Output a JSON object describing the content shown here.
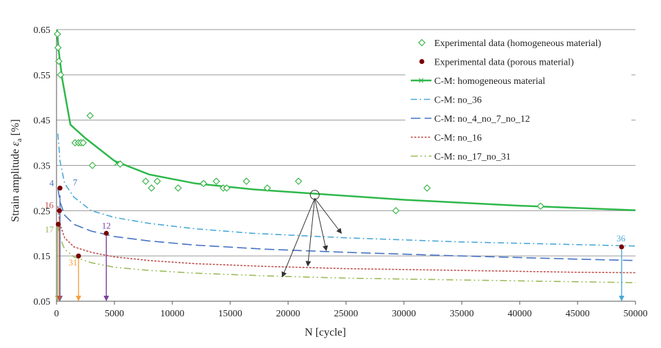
{
  "chart_data": {
    "type": "scatter",
    "xlabel": "N [cycle]",
    "ylabel_main": "Strain amplitude ",
    "ylabel_symbol": "ε",
    "ylabel_sub": "a",
    "ylabel_unit": " [%]",
    "xlim": [
      0,
      50000
    ],
    "ylim": [
      0.05,
      0.65
    ],
    "x_ticks": [
      0,
      5000,
      10000,
      15000,
      20000,
      25000,
      30000,
      35000,
      40000,
      45000,
      50000
    ],
    "x_tick_labels": [
      "0",
      "5000",
      "10000",
      "15000",
      "20000",
      "25000",
      "30000",
      "35000",
      "40000",
      "45000",
      "50000"
    ],
    "y_ticks": [
      0.05,
      0.15,
      0.25,
      0.35,
      0.45,
      0.55,
      0.65
    ],
    "y_tick_labels": [
      "0.05",
      "0.15",
      "0.25",
      "0.35",
      "0.45",
      "0.55",
      "0.65"
    ],
    "grid": "horizontal",
    "legend_position": "top-right",
    "legend": [
      {
        "key": "homo",
        "label": "Experimental data (homogeneous material)",
        "color": "#3cb44b",
        "style": "diamond"
      },
      {
        "key": "porous",
        "label": "Experimental data (porous material)",
        "color": "#7b0000",
        "style": "dot"
      },
      {
        "key": "cm_homo",
        "label": "C-M: homogeneous material",
        "color": "#2db84a",
        "style": "solid"
      },
      {
        "key": "no36",
        "label": "C-M: no_36",
        "color": "#4aa8d8",
        "style": "dashdot"
      },
      {
        "key": "no4",
        "label": "C-M: no_4_no_7_no_12",
        "color": "#4472c4",
        "style": "longdash"
      },
      {
        "key": "no16",
        "label": "C-M: no_16",
        "color": "#c0504d",
        "style": "dotted"
      },
      {
        "key": "no17",
        "label": "C-M: no_17_no_31",
        "color": "#9bbb59",
        "style": "dashdotdot"
      }
    ],
    "series": [
      {
        "name": "Experimental data (homogeneous material)",
        "points": [
          [
            80,
            0.64
          ],
          [
            130,
            0.61
          ],
          [
            200,
            0.58
          ],
          [
            350,
            0.55
          ],
          [
            1600,
            0.4
          ],
          [
            1900,
            0.4
          ],
          [
            2100,
            0.4
          ],
          [
            2300,
            0.4
          ],
          [
            2900,
            0.46
          ],
          [
            3100,
            0.35
          ],
          [
            5500,
            0.353
          ],
          [
            7700,
            0.315
          ],
          [
            8200,
            0.3
          ],
          [
            8700,
            0.315
          ],
          [
            10500,
            0.3
          ],
          [
            12700,
            0.31
          ],
          [
            13800,
            0.315
          ],
          [
            14400,
            0.3
          ],
          [
            14700,
            0.3
          ],
          [
            16400,
            0.315
          ],
          [
            18200,
            0.3
          ],
          [
            20900,
            0.315
          ],
          [
            29300,
            0.25
          ],
          [
            32000,
            0.3
          ],
          [
            41800,
            0.26
          ]
        ]
      },
      {
        "name": "Experimental data (porous material)",
        "points": [
          [
            300,
            0.3
          ],
          [
            250,
            0.25
          ],
          [
            150,
            0.22
          ],
          [
            1900,
            0.15
          ],
          [
            4300,
            0.2
          ],
          [
            48800,
            0.17
          ]
        ]
      },
      {
        "name": "C-M: homogeneous material",
        "curve": [
          [
            40,
            0.65
          ],
          [
            200,
            0.6
          ],
          [
            500,
            0.54
          ],
          [
            1200,
            0.44
          ],
          [
            2500,
            0.41
          ],
          [
            5000,
            0.36
          ],
          [
            8000,
            0.33
          ],
          [
            12000,
            0.31
          ],
          [
            17000,
            0.297
          ],
          [
            22000,
            0.288
          ],
          [
            30000,
            0.274
          ],
          [
            40000,
            0.261
          ],
          [
            50000,
            0.251
          ]
        ]
      },
      {
        "name": "C-M: no_36",
        "curve": [
          [
            120,
            0.42
          ],
          [
            300,
            0.36
          ],
          [
            700,
            0.31
          ],
          [
            1500,
            0.28
          ],
          [
            3000,
            0.25
          ],
          [
            5000,
            0.235
          ],
          [
            8000,
            0.222
          ],
          [
            12000,
            0.21
          ],
          [
            17000,
            0.2
          ],
          [
            25000,
            0.19
          ],
          [
            35000,
            0.181
          ],
          [
            45000,
            0.175
          ],
          [
            50000,
            0.172
          ]
        ]
      },
      {
        "name": "C-M: no_4_no_7_no_12",
        "curve": [
          [
            120,
            0.3
          ],
          [
            300,
            0.27
          ],
          [
            700,
            0.24
          ],
          [
            1500,
            0.22
          ],
          [
            3000,
            0.205
          ],
          [
            5000,
            0.193
          ],
          [
            8000,
            0.183
          ],
          [
            12000,
            0.174
          ],
          [
            18000,
            0.165
          ],
          [
            25000,
            0.158
          ],
          [
            35000,
            0.15
          ],
          [
            45000,
            0.143
          ],
          [
            50000,
            0.14
          ]
        ]
      },
      {
        "name": "C-M: no_16",
        "curve": [
          [
            120,
            0.26
          ],
          [
            300,
            0.22
          ],
          [
            700,
            0.19
          ],
          [
            1500,
            0.17
          ],
          [
            3000,
            0.158
          ],
          [
            5000,
            0.148
          ],
          [
            8000,
            0.14
          ],
          [
            12000,
            0.133
          ],
          [
            18000,
            0.127
          ],
          [
            25000,
            0.122
          ],
          [
            35000,
            0.118
          ],
          [
            45000,
            0.114
          ],
          [
            50000,
            0.113
          ]
        ]
      },
      {
        "name": "C-M: no_17_no_31",
        "curve": [
          [
            120,
            0.22
          ],
          [
            300,
            0.19
          ],
          [
            700,
            0.165
          ],
          [
            1500,
            0.148
          ],
          [
            3000,
            0.135
          ],
          [
            5000,
            0.125
          ],
          [
            8000,
            0.118
          ],
          [
            12000,
            0.112
          ],
          [
            18000,
            0.106
          ],
          [
            25000,
            0.101
          ],
          [
            35000,
            0.097
          ],
          [
            45000,
            0.093
          ],
          [
            50000,
            0.091
          ]
        ]
      }
    ],
    "annotations": [
      {
        "text": "4",
        "x": 300,
        "y": 0.3,
        "color": "#4472c4"
      },
      {
        "text": "7",
        "x": 300,
        "y": 0.3,
        "color": "#4472c4"
      },
      {
        "text": "16",
        "x": 250,
        "y": 0.25,
        "color": "#c0504d"
      },
      {
        "text": "17",
        "x": 150,
        "y": 0.22,
        "color": "#9bbb59"
      },
      {
        "text": "31",
        "x": 1900,
        "y": 0.15,
        "color": "#f4a13c"
      },
      {
        "text": "12",
        "x": 4300,
        "y": 0.2,
        "color": "#7b3fa0"
      },
      {
        "text": "36",
        "x": 48800,
        "y": 0.17,
        "color": "#4aa8d8"
      }
    ],
    "callout": {
      "x": 22300,
      "y": 0.285,
      "targets": [
        [
          24600,
          0.2
        ],
        [
          23300,
          0.162
        ],
        [
          21700,
          0.128
        ],
        [
          19500,
          0.104
        ]
      ]
    }
  }
}
